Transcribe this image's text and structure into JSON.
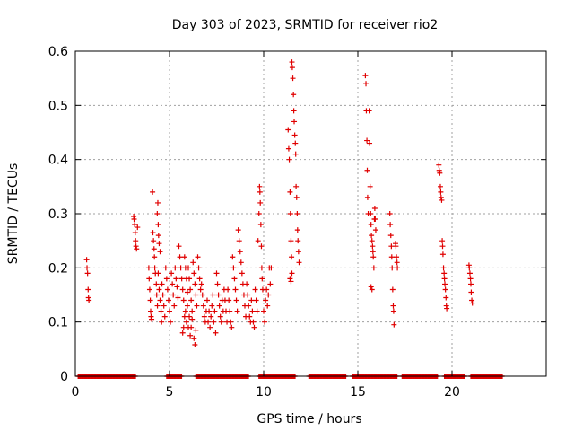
{
  "chart_data": {
    "type": "scatter",
    "title": "Day 303 of 2023, SRMTID for receiver rio2",
    "xlabel": "GPS time / hours",
    "ylabel": "SRMTID / TECUs",
    "xlim": [
      0,
      25
    ],
    "ylim": [
      0,
      0.6
    ],
    "xticks": [
      0,
      5,
      10,
      15,
      20
    ],
    "yticks": [
      0,
      0.1,
      0.2,
      0.3,
      0.4,
      0.5,
      0.6
    ],
    "xtick_labels": [
      "0",
      "5",
      "10",
      "15",
      "20"
    ],
    "ytick_labels": [
      "0",
      "0.1",
      "0.2",
      "0.3",
      "0.4",
      "0.5",
      "0.6"
    ],
    "grid": true,
    "legend": "none",
    "marker": "+",
    "color": "#e00000",
    "series": [
      {
        "name": "rio2",
        "points": [
          [
            0.6,
            0.215
          ],
          [
            0.62,
            0.2
          ],
          [
            0.65,
            0.19
          ],
          [
            0.68,
            0.16
          ],
          [
            0.7,
            0.145
          ],
          [
            0.72,
            0.14
          ],
          [
            3.1,
            0.295
          ],
          [
            3.12,
            0.29
          ],
          [
            3.15,
            0.28
          ],
          [
            3.18,
            0.265
          ],
          [
            3.2,
            0.25
          ],
          [
            3.22,
            0.24
          ],
          [
            3.25,
            0.235
          ],
          [
            3.3,
            0.275
          ],
          [
            3.9,
            0.2
          ],
          [
            3.92,
            0.18
          ],
          [
            3.95,
            0.16
          ],
          [
            3.98,
            0.14
          ],
          [
            4.0,
            0.12
          ],
          [
            4.02,
            0.11
          ],
          [
            4.05,
            0.105
          ],
          [
            4.1,
            0.34
          ],
          [
            4.12,
            0.265
          ],
          [
            4.15,
            0.25
          ],
          [
            4.18,
            0.235
          ],
          [
            4.2,
            0.22
          ],
          [
            4.22,
            0.2
          ],
          [
            4.25,
            0.19
          ],
          [
            4.35,
            0.3
          ],
          [
            4.38,
            0.32
          ],
          [
            4.4,
            0.28
          ],
          [
            4.42,
            0.26
          ],
          [
            4.45,
            0.245
          ],
          [
            4.5,
            0.23
          ],
          [
            4.3,
            0.17
          ],
          [
            4.32,
            0.15
          ],
          [
            4.36,
            0.13
          ],
          [
            4.4,
            0.19
          ],
          [
            4.45,
            0.16
          ],
          [
            4.5,
            0.14
          ],
          [
            4.55,
            0.12
          ],
          [
            4.58,
            0.1
          ],
          [
            4.6,
            0.17
          ],
          [
            4.65,
            0.15
          ],
          [
            4.7,
            0.13
          ],
          [
            4.75,
            0.11
          ],
          [
            4.8,
            0.2
          ],
          [
            4.85,
            0.18
          ],
          [
            4.9,
            0.16
          ],
          [
            4.95,
            0.14
          ],
          [
            5.0,
            0.12
          ],
          [
            5.05,
            0.1
          ],
          [
            5.1,
            0.19
          ],
          [
            5.15,
            0.17
          ],
          [
            5.2,
            0.15
          ],
          [
            5.25,
            0.13
          ],
          [
            5.3,
            0.2
          ],
          [
            5.35,
            0.18
          ],
          [
            5.4,
            0.165
          ],
          [
            5.45,
            0.145
          ],
          [
            5.5,
            0.24
          ],
          [
            5.55,
            0.22
          ],
          [
            5.6,
            0.2
          ],
          [
            5.65,
            0.18
          ],
          [
            5.7,
            0.16
          ],
          [
            5.75,
            0.14
          ],
          [
            5.8,
            0.22
          ],
          [
            5.85,
            0.2
          ],
          [
            5.9,
            0.18
          ],
          [
            5.95,
            0.155
          ],
          [
            6.0,
            0.2
          ],
          [
            6.05,
            0.18
          ],
          [
            6.1,
            0.16
          ],
          [
            6.15,
            0.14
          ],
          [
            6.2,
            0.12
          ],
          [
            6.25,
            0.21
          ],
          [
            6.3,
            0.19
          ],
          [
            6.35,
            0.17
          ],
          [
            6.4,
            0.15
          ],
          [
            6.45,
            0.13
          ],
          [
            6.5,
            0.22
          ],
          [
            6.55,
            0.2
          ],
          [
            6.6,
            0.18
          ],
          [
            6.65,
            0.16
          ],
          [
            5.7,
            0.08
          ],
          [
            5.75,
            0.09
          ],
          [
            5.8,
            0.11
          ],
          [
            5.85,
            0.12
          ],
          [
            5.9,
            0.1
          ],
          [
            5.95,
            0.13
          ],
          [
            6.0,
            0.09
          ],
          [
            6.05,
            0.11
          ],
          [
            6.1,
            0.075
          ],
          [
            6.15,
            0.09
          ],
          [
            6.2,
            0.105
          ],
          [
            6.3,
            0.07
          ],
          [
            6.35,
            0.058
          ],
          [
            6.4,
            0.085
          ],
          [
            6.7,
            0.17
          ],
          [
            6.75,
            0.15
          ],
          [
            6.8,
            0.13
          ],
          [
            6.85,
            0.11
          ],
          [
            6.9,
            0.1
          ],
          [
            6.95,
            0.12
          ],
          [
            7.0,
            0.14
          ],
          [
            7.05,
            0.1
          ],
          [
            7.1,
            0.12
          ],
          [
            7.15,
            0.09
          ],
          [
            7.2,
            0.11
          ],
          [
            7.25,
            0.13
          ],
          [
            7.3,
            0.15
          ],
          [
            7.35,
            0.1
          ],
          [
            7.4,
            0.12
          ],
          [
            7.45,
            0.08
          ],
          [
            7.5,
            0.19
          ],
          [
            7.55,
            0.17
          ],
          [
            7.6,
            0.15
          ],
          [
            7.65,
            0.13
          ],
          [
            7.7,
            0.11
          ],
          [
            7.75,
            0.1
          ],
          [
            7.8,
            0.14
          ],
          [
            7.85,
            0.12
          ],
          [
            7.9,
            0.16
          ],
          [
            7.95,
            0.14
          ],
          [
            8.0,
            0.12
          ],
          [
            8.05,
            0.1
          ],
          [
            8.1,
            0.16
          ],
          [
            8.15,
            0.14
          ],
          [
            8.2,
            0.12
          ],
          [
            8.25,
            0.1
          ],
          [
            8.3,
            0.09
          ],
          [
            8.35,
            0.22
          ],
          [
            8.4,
            0.2
          ],
          [
            8.45,
            0.18
          ],
          [
            8.5,
            0.16
          ],
          [
            8.55,
            0.14
          ],
          [
            8.6,
            0.12
          ],
          [
            8.65,
            0.27
          ],
          [
            8.7,
            0.25
          ],
          [
            8.75,
            0.23
          ],
          [
            8.8,
            0.21
          ],
          [
            8.85,
            0.19
          ],
          [
            8.9,
            0.17
          ],
          [
            8.95,
            0.15
          ],
          [
            9.0,
            0.13
          ],
          [
            9.05,
            0.11
          ],
          [
            9.1,
            0.17
          ],
          [
            9.15,
            0.15
          ],
          [
            9.2,
            0.13
          ],
          [
            9.25,
            0.11
          ],
          [
            9.3,
            0.1
          ],
          [
            9.35,
            0.14
          ],
          [
            9.4,
            0.12
          ],
          [
            9.45,
            0.1
          ],
          [
            9.5,
            0.09
          ],
          [
            9.55,
            0.16
          ],
          [
            9.6,
            0.14
          ],
          [
            9.65,
            0.12
          ],
          [
            9.7,
            0.25
          ],
          [
            9.75,
            0.3
          ],
          [
            9.78,
            0.35
          ],
          [
            9.8,
            0.34
          ],
          [
            9.82,
            0.32
          ],
          [
            9.85,
            0.28
          ],
          [
            9.88,
            0.24
          ],
          [
            9.9,
            0.2
          ],
          [
            9.92,
            0.18
          ],
          [
            9.95,
            0.16
          ],
          [
            10.0,
            0.12
          ],
          [
            10.05,
            0.1
          ],
          [
            10.1,
            0.14
          ],
          [
            10.15,
            0.16
          ],
          [
            10.2,
            0.13
          ],
          [
            10.25,
            0.15
          ],
          [
            10.3,
            0.2
          ],
          [
            10.35,
            0.17
          ],
          [
            10.4,
            0.2
          ],
          [
            11.3,
            0.455
          ],
          [
            11.33,
            0.42
          ],
          [
            11.36,
            0.4
          ],
          [
            11.4,
            0.34
          ],
          [
            11.42,
            0.3
          ],
          [
            11.45,
            0.25
          ],
          [
            11.48,
            0.22
          ],
          [
            11.5,
            0.58
          ],
          [
            11.52,
            0.57
          ],
          [
            11.55,
            0.55
          ],
          [
            11.58,
            0.52
          ],
          [
            11.6,
            0.49
          ],
          [
            11.62,
            0.47
          ],
          [
            11.65,
            0.445
          ],
          [
            11.68,
            0.43
          ],
          [
            11.7,
            0.41
          ],
          [
            11.72,
            0.35
          ],
          [
            11.75,
            0.33
          ],
          [
            11.78,
            0.3
          ],
          [
            11.8,
            0.27
          ],
          [
            11.82,
            0.25
          ],
          [
            11.85,
            0.23
          ],
          [
            11.88,
            0.21
          ],
          [
            11.4,
            0.18
          ],
          [
            11.45,
            0.175
          ],
          [
            11.5,
            0.19
          ],
          [
            15.4,
            0.555
          ],
          [
            15.43,
            0.54
          ],
          [
            15.45,
            0.49
          ],
          [
            15.48,
            0.435
          ],
          [
            15.5,
            0.38
          ],
          [
            15.52,
            0.33
          ],
          [
            15.55,
            0.3
          ],
          [
            15.6,
            0.49
          ],
          [
            15.62,
            0.43
          ],
          [
            15.65,
            0.35
          ],
          [
            15.68,
            0.3
          ],
          [
            15.7,
            0.28
          ],
          [
            15.72,
            0.26
          ],
          [
            15.75,
            0.25
          ],
          [
            15.78,
            0.24
          ],
          [
            15.8,
            0.23
          ],
          [
            15.82,
            0.22
          ],
          [
            15.85,
            0.2
          ],
          [
            15.88,
            0.29
          ],
          [
            15.9,
            0.31
          ],
          [
            15.92,
            0.29
          ],
          [
            15.95,
            0.27
          ],
          [
            15.7,
            0.165
          ],
          [
            15.75,
            0.16
          ],
          [
            16.7,
            0.3
          ],
          [
            16.72,
            0.28
          ],
          [
            16.75,
            0.26
          ],
          [
            16.78,
            0.24
          ],
          [
            16.8,
            0.22
          ],
          [
            16.82,
            0.2
          ],
          [
            16.85,
            0.16
          ],
          [
            16.88,
            0.13
          ],
          [
            16.9,
            0.12
          ],
          [
            16.92,
            0.095
          ],
          [
            17.0,
            0.245
          ],
          [
            17.02,
            0.24
          ],
          [
            17.05,
            0.22
          ],
          [
            17.08,
            0.21
          ],
          [
            17.1,
            0.2
          ],
          [
            19.3,
            0.39
          ],
          [
            19.32,
            0.38
          ],
          [
            19.35,
            0.375
          ],
          [
            19.38,
            0.35
          ],
          [
            19.4,
            0.34
          ],
          [
            19.42,
            0.33
          ],
          [
            19.45,
            0.325
          ],
          [
            19.48,
            0.25
          ],
          [
            19.5,
            0.24
          ],
          [
            19.52,
            0.225
          ],
          [
            19.55,
            0.2
          ],
          [
            19.58,
            0.19
          ],
          [
            19.6,
            0.18
          ],
          [
            19.62,
            0.17
          ],
          [
            19.65,
            0.16
          ],
          [
            19.68,
            0.145
          ],
          [
            19.7,
            0.13
          ],
          [
            19.72,
            0.125
          ],
          [
            20.9,
            0.205
          ],
          [
            20.92,
            0.2
          ],
          [
            20.95,
            0.19
          ],
          [
            20.98,
            0.18
          ],
          [
            21.0,
            0.17
          ],
          [
            21.02,
            0.155
          ],
          [
            21.05,
            0.14
          ],
          [
            21.08,
            0.135
          ]
        ],
        "zero_runs": [
          [
            0.15,
            3.2
          ],
          [
            4.85,
            5.65
          ],
          [
            6.4,
            9.2
          ],
          [
            9.75,
            11.7
          ],
          [
            12.4,
            14.4
          ],
          [
            14.7,
            17.1
          ],
          [
            17.35,
            19.25
          ],
          [
            19.6,
            20.7
          ],
          [
            21.0,
            22.7
          ]
        ]
      }
    ]
  }
}
